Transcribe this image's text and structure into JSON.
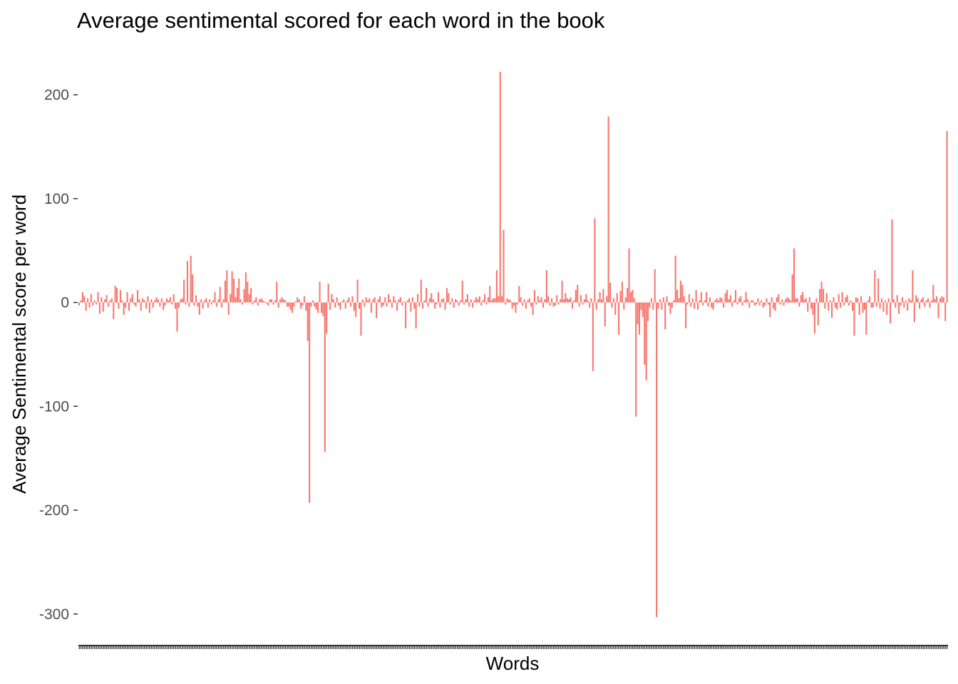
{
  "colors": {
    "bar": "#F8766D",
    "tick_label": "#4d4d4d",
    "axis": "#333333",
    "background": "#ffffff"
  },
  "chart_data": {
    "type": "bar",
    "title": "Average sentimental scored for each word in the book",
    "xlabel": "Words",
    "ylabel": "Average Sentimental score per word",
    "ylim": [
      -332,
      240
    ],
    "yticks": [
      200,
      100,
      0,
      -100,
      -200,
      -300
    ],
    "yticklabels": [
      "200",
      "100",
      "0",
      "-100",
      "-200",
      "-300"
    ],
    "grid": false,
    "legend": "none",
    "values": [
      -3,
      2,
      10,
      6,
      -8,
      4,
      -5,
      8,
      -3,
      2,
      -2,
      10,
      -11,
      5,
      -9,
      3,
      7,
      -4,
      2,
      4,
      -16,
      16,
      14,
      -6,
      12,
      2,
      -12,
      -5,
      10,
      -8,
      4,
      8,
      -2,
      -4,
      12,
      3,
      -8,
      4,
      2,
      -6,
      6,
      -10,
      3,
      -5,
      2,
      5,
      3,
      -4,
      4,
      -7,
      -3,
      4,
      2,
      5,
      -2,
      8,
      -6,
      -28,
      -5,
      3,
      4,
      22,
      -2,
      40,
      -4,
      45,
      27,
      -3,
      7,
      -4,
      -12,
      3,
      -6,
      2,
      4,
      -5,
      3,
      -2,
      2,
      10,
      -4,
      3,
      15,
      -5,
      3,
      21,
      31,
      -12,
      8,
      30,
      23,
      5,
      14,
      23,
      3,
      -2,
      13,
      29,
      20,
      8,
      14,
      -2,
      2,
      5,
      -3,
      3,
      4,
      2,
      1,
      -1,
      -3,
      3,
      3,
      -2,
      2,
      20,
      -5,
      3,
      5,
      3,
      2,
      -4,
      -4,
      -7,
      -10,
      -4,
      1,
      5,
      3,
      -6,
      -3,
      6,
      -8,
      -37,
      -193,
      -4,
      2,
      -4,
      -7,
      -10,
      20,
      -10,
      -13,
      -144,
      -30,
      18,
      -7,
      8,
      3,
      -5,
      5,
      -3,
      -7,
      1,
      3,
      -6,
      2,
      5,
      -4,
      6,
      -8,
      -14,
      22,
      -6,
      -32,
      3,
      -4,
      5,
      2,
      4,
      -10,
      3,
      5,
      -15,
      3,
      6,
      -5,
      -3,
      5,
      -4,
      8,
      3,
      -5,
      6,
      2,
      -8,
      3,
      5,
      -3,
      1,
      -25,
      2,
      4,
      -9,
      5,
      -6,
      -25,
      8,
      -4,
      22,
      -6,
      2,
      14,
      -4,
      4,
      9,
      3,
      -6,
      -2,
      10,
      -5,
      3,
      4,
      -7,
      14,
      9,
      -2,
      4,
      -5,
      3,
      2,
      -3,
      2,
      21,
      -2,
      3,
      8,
      -4,
      3,
      -5,
      2,
      5,
      3,
      6,
      -3,
      2,
      8,
      -2,
      5,
      16,
      2,
      4,
      4,
      31,
      6,
      222,
      6,
      70,
      -2,
      4,
      3,
      2,
      -6,
      -3,
      -10,
      -2,
      16,
      5,
      -3,
      3,
      -6,
      2,
      4,
      -4,
      -12,
      12,
      -2,
      6,
      2,
      5,
      -5,
      3,
      31,
      6,
      -3,
      4,
      -4,
      -3,
      7,
      -2,
      3,
      21,
      3,
      9,
      4,
      3,
      5,
      -6,
      2,
      12,
      17,
      -4,
      7,
      -2,
      3,
      8,
      2,
      -5,
      4,
      -66,
      81,
      -7,
      3,
      10,
      3,
      13,
      -23,
      6,
      179,
      19,
      -5,
      4,
      -12,
      9,
      -31,
      11,
      20,
      -7,
      5,
      14,
      52,
      10,
      12,
      4,
      -110,
      -21,
      -31,
      -7,
      -14,
      -60,
      -75,
      -18,
      -5,
      4,
      -7,
      32,
      -303,
      -6,
      3,
      -7,
      5,
      -26,
      6,
      -3,
      -11,
      -5,
      2,
      45,
      12,
      4,
      21,
      17,
      6,
      -25,
      -2,
      8,
      -4,
      4,
      -6,
      12,
      -7,
      2,
      10,
      -3,
      2,
      10,
      -4,
      5,
      -5,
      -7,
      2,
      4,
      2,
      5,
      4,
      -5,
      9,
      12,
      3,
      7,
      -4,
      2,
      12,
      -2,
      4,
      6,
      -3,
      2,
      10,
      3,
      -5,
      2,
      2,
      -3,
      -2,
      4,
      -3,
      2,
      -5,
      -3,
      4,
      -2,
      -14,
      5,
      -6,
      -8,
      5,
      8,
      -2,
      3,
      -3,
      3,
      5,
      4,
      2,
      27,
      52,
      4,
      4,
      -4,
      7,
      10,
      3,
      4,
      -9,
      5,
      -6,
      -12,
      -30,
      4,
      -22,
      13,
      20,
      13,
      -6,
      9,
      -8,
      2,
      -15,
      5,
      -5,
      -7,
      8,
      -5,
      10,
      -3,
      5,
      7,
      -3,
      2,
      -8,
      -32,
      5,
      4,
      -12,
      6,
      -10,
      -7,
      -31,
      2,
      6,
      -5,
      -5,
      31,
      -4,
      23,
      -6,
      4,
      -9,
      2,
      -12,
      4,
      -20,
      80,
      3,
      -5,
      7,
      -11,
      -3,
      5,
      -5,
      2,
      -8,
      4,
      2,
      31,
      -19,
      7,
      4,
      -6,
      3,
      5,
      -4,
      2,
      4,
      -5,
      2,
      17,
      3,
      6,
      -15,
      4,
      6,
      5,
      -18,
      165
    ]
  }
}
